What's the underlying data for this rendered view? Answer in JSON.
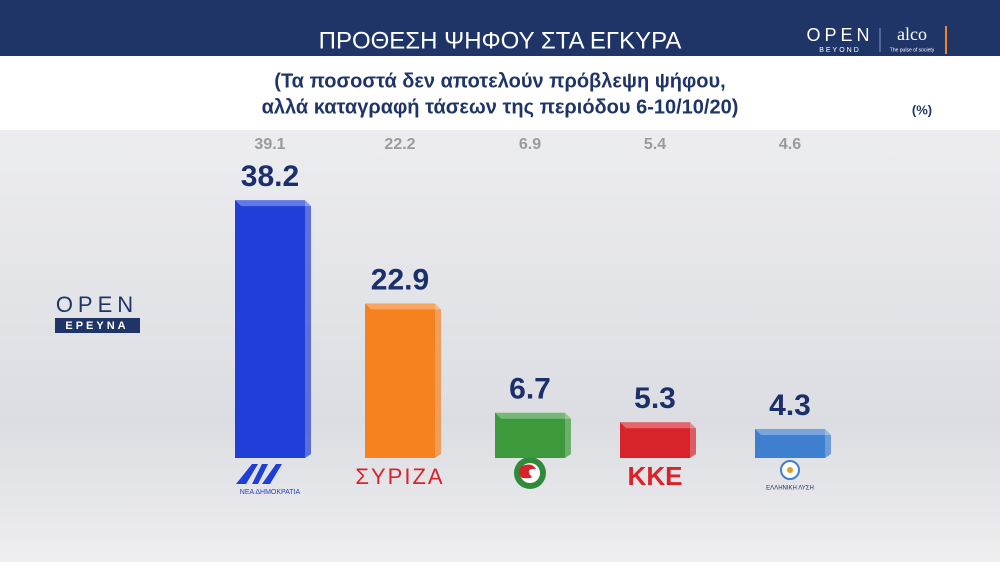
{
  "header": {
    "title": "ΠΡΟΘΕΣΗ ΨΗΦΟΥ ΣΤΑ ΕΓΚΥΡΑ",
    "brand_open": "OPEN",
    "brand_open_sub": "BEYOND",
    "brand_alco": "alco",
    "brand_alco_sub": "The pulse of society"
  },
  "side_logo": {
    "text": "OPEN",
    "sub": "ΕΡΕΥΝΑ"
  },
  "chart_data": {
    "type": "bar",
    "subtitle": [
      "(Τα ποσοστά δεν αποτελούν πρόβλεψη ψήφου,",
      "αλλά καταγραφή τάσεων της περιόδου 6-10/10/20)"
    ],
    "unit_label": "(%)",
    "categories": [
      "ΝΕΑ ΔΗΜΟΚΡΑΤΙΑ",
      "ΣΥΡΙΖΑ",
      null,
      "ΚΚΕ",
      "ΕΛΛΗΝΙΚΗ ΛΥΣΗ"
    ],
    "values": [
      38.2,
      22.9,
      6.7,
      5.3,
      4.3
    ],
    "previous_values": [
      39.1,
      22.2,
      6.9,
      5.4,
      4.6
    ],
    "colors": [
      "#1f3fd8",
      "#f5821f",
      "#3c9a3c",
      "#d9232b",
      "#3f7fd0"
    ]
  }
}
